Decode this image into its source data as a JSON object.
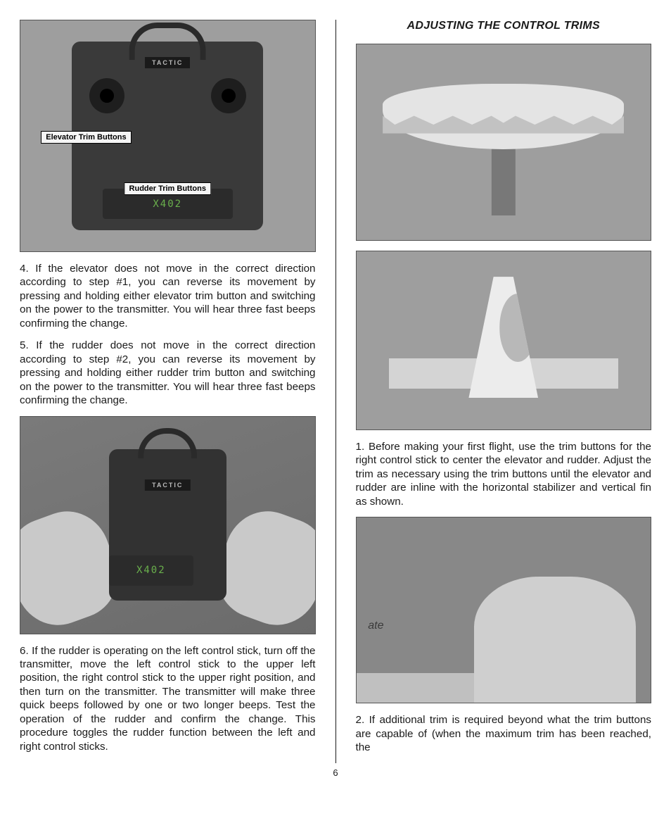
{
  "page_number": "6",
  "left": {
    "fig1": {
      "brand": "TACTIC",
      "model": "X402",
      "label_elevator": "Elevator Trim Buttons",
      "label_rudder": "Rudder Trim Buttons"
    },
    "para4": "4. If the elevator does not move in the correct direction according to step #1, you can reverse its movement by pressing and holding either elevator trim button and switching on the power to the transmitter. You will hear three fast beeps confirming the change.",
    "para5": "5. If the rudder does not move in the correct direction according to step #2, you can reverse its movement by pressing and holding either rudder trim button and switching on the power to the transmitter. You will hear three fast beeps confirming the change.",
    "fig2": {
      "brand": "TACTIC",
      "model": "X402"
    },
    "para6": "6. If the rudder is operating on the left control stick, turn off the transmitter, move the left control stick to the upper left position, the right control stick to the upper right position, and then turn on the transmitter. The transmitter will make three quick beeps followed by one or two longer beeps. Test the operation of the rudder and confirm the change. This procedure toggles the rudder function between the left and right control sticks."
  },
  "right": {
    "heading": "ADJUSTING THE CONTROL TRIMS",
    "para1": "1. Before making your first flight, use the trim buttons for the right control stick to center the elevator and rudder. Adjust the trim as necessary using the trim buttons until the elevator and rudder are inline with the horizontal stabilizer and vertical fin as shown.",
    "fig3_text": "ate",
    "para2": "2. If additional trim is required beyond what the trim buttons are capable of (when the maximum trim has been reached, the"
  },
  "colors": {
    "text": "#1a1a1a",
    "bg": "#ffffff",
    "img_bg": "#9e9e9e",
    "tx_body": "#3a3a3a",
    "accent": "#6ab04c"
  },
  "typography": {
    "body_fontsize": 15.2,
    "heading_fontsize": 16,
    "line_height": 1.28,
    "align": "justify"
  }
}
